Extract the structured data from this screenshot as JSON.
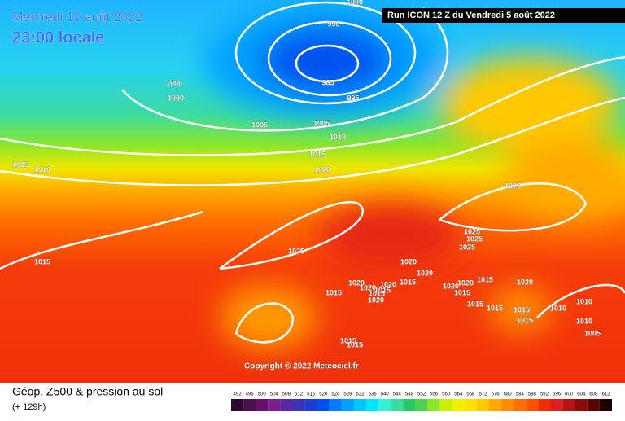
{
  "header": {
    "date": "Mercredi 10 août 2022",
    "time": "23:00 locale",
    "run": "Run ICON 12 Z du Vendredi 5 août 2022"
  },
  "map": {
    "isobar_labels": [
      1000,
      990,
      985,
      995,
      1000,
      1000,
      1005,
      1005,
      1010,
      1015,
      1020,
      1005,
      1010,
      1025,
      1025,
      1015,
      1025,
      1025,
      1025,
      1020,
      1020,
      1015,
      1020,
      1020,
      1020,
      1015,
      1015,
      1015,
      1020,
      1020,
      1020,
      1015,
      1015,
      1020,
      1015,
      1015,
      1015,
      1015,
      1010,
      1010,
      1010,
      1005,
      1015,
      1015
    ],
    "copyright": "Copyright © 2022 Meteociel.fr"
  },
  "legend": {
    "title": "Géop. Z500 & pression au sol",
    "lead": "(+ 129h)",
    "values": [
      492,
      496,
      500,
      504,
      508,
      512,
      516,
      520,
      524,
      528,
      532,
      536,
      540,
      544,
      548,
      552,
      556,
      560,
      564,
      568,
      572,
      576,
      580,
      584,
      588,
      592,
      596,
      600,
      604,
      608,
      612
    ],
    "colors": [
      "#2d0a2d",
      "#4b0f4b",
      "#690f69",
      "#7d1e8c",
      "#5a28a0",
      "#3c32b4",
      "#1e3cd2",
      "#0050f0",
      "#0a78ff",
      "#00a0ff",
      "#00c8ff",
      "#00e6ff",
      "#32f0d2",
      "#3cdca0",
      "#28c864",
      "#50d250",
      "#8ce628",
      "#c8f000",
      "#f0f000",
      "#ffe100",
      "#ffc800",
      "#ffaa00",
      "#ff8c00",
      "#ff6e00",
      "#ff5000",
      "#f02d00",
      "#dc1e1e",
      "#b41414",
      "#8c0a0a",
      "#5a0505",
      "#1e0000"
    ]
  }
}
